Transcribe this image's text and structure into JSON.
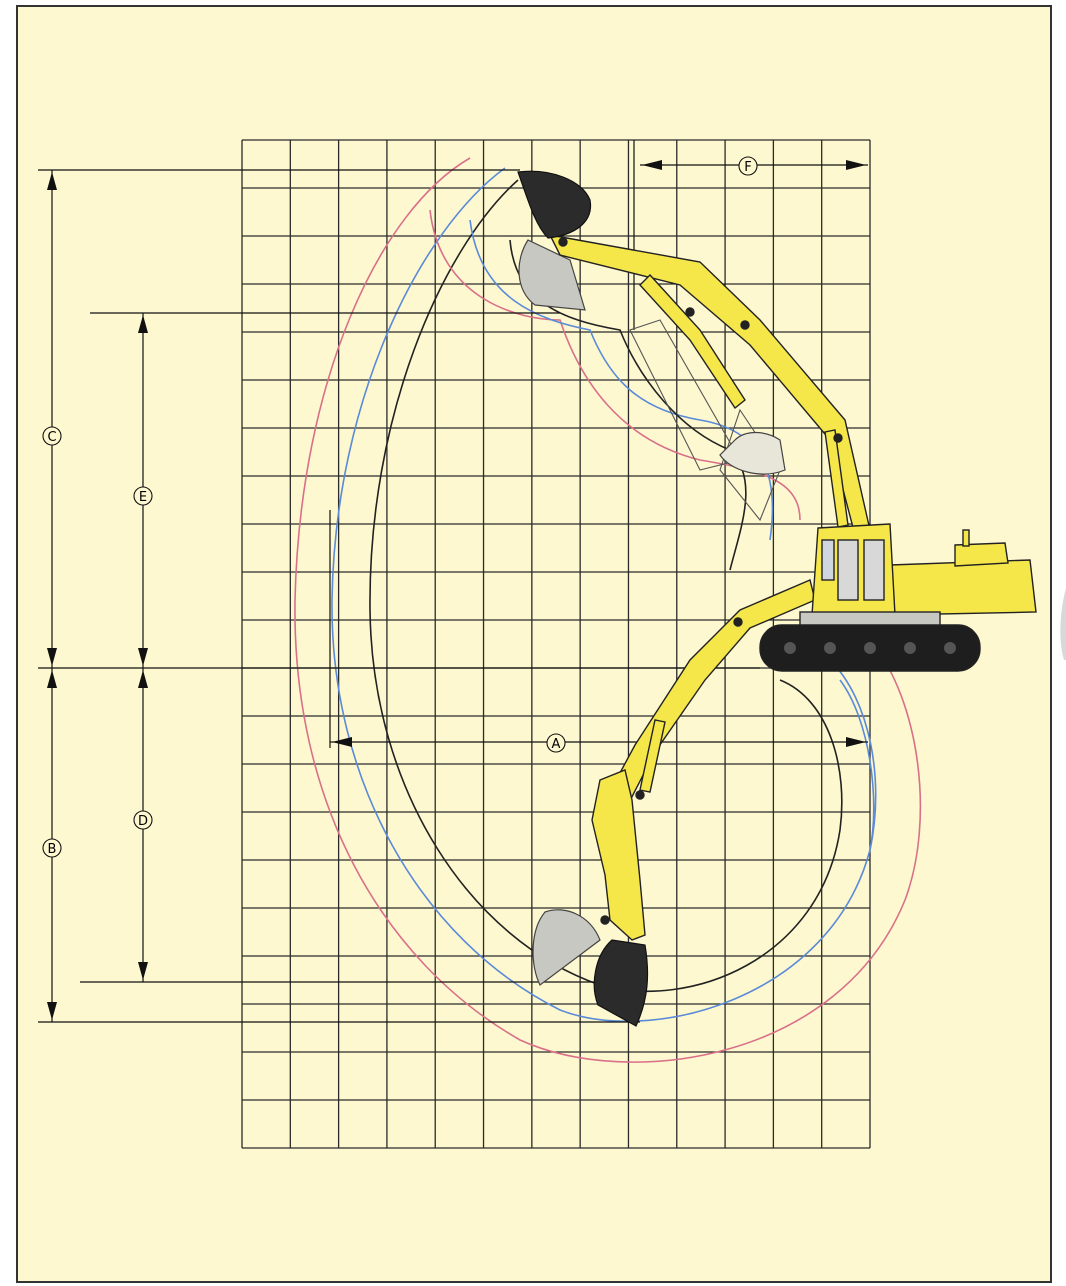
{
  "dimension_labels": {
    "a": "A",
    "b": "B",
    "c": "C",
    "d": "D",
    "e": "E",
    "f": "F"
  },
  "colors": {
    "paper": "#fdf8cf",
    "grid": "#2a2a2a",
    "machine_yellow": "#f5e64a",
    "bucket_dark": "#2b2b2b",
    "bucket_ghost": "#c8c8c2",
    "envelope_pink": "#d9708a",
    "envelope_blue": "#5a8ad8",
    "envelope_black": "#222222",
    "track": "#1e1e1e"
  },
  "icons": {
    "machine": "excavator-illustration"
  }
}
